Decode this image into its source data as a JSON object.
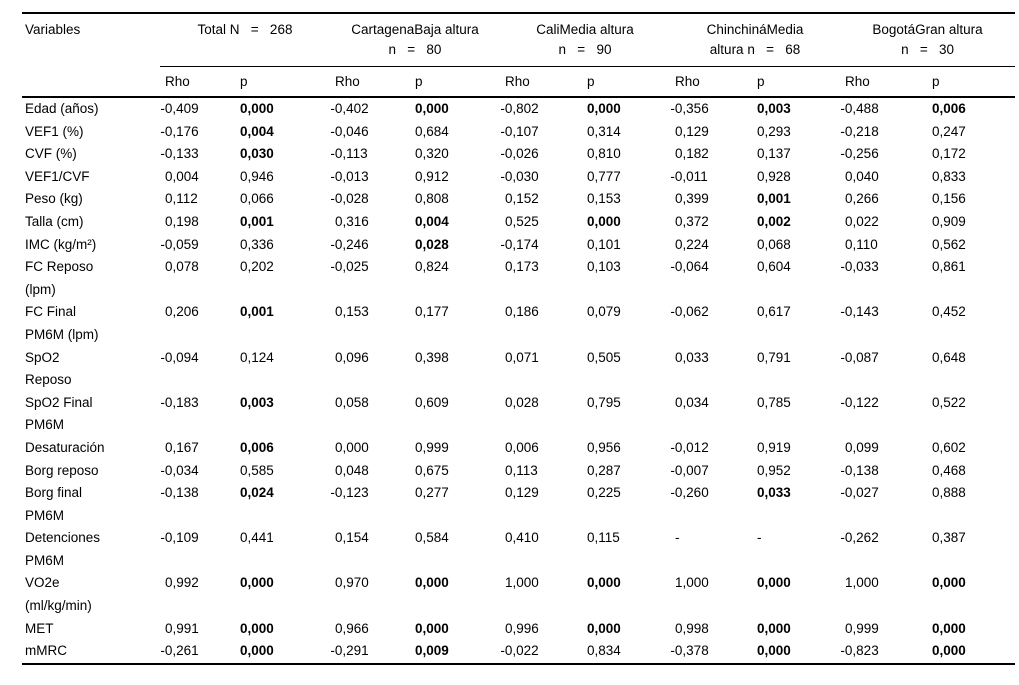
{
  "colors": {
    "text": "#000000",
    "background": "#ffffff",
    "rule": "#000000"
  },
  "table": {
    "header": {
      "variables_label": "Variables",
      "groups": [
        {
          "line1": "Total N   =   268",
          "line2": ""
        },
        {
          "line1": "CartagenaBaja altura",
          "line2": "n   =   80"
        },
        {
          "line1": "CaliMedia altura",
          "line2": "n   =   90"
        },
        {
          "line1": "ChinchináMedia",
          "line2": "altura n   =   68"
        },
        {
          "line1": "BogotáGran altura",
          "line2": "n   =   30"
        }
      ],
      "sub_labels": [
        "Rho",
        "p"
      ]
    },
    "rows": [
      {
        "label": [
          "Edad (años)"
        ],
        "cells": [
          [
            "-0,409",
            0
          ],
          [
            "0,000",
            1
          ],
          [
            "-0,402",
            0
          ],
          [
            "0,000",
            1
          ],
          [
            "-0,802",
            0
          ],
          [
            "0,000",
            1
          ],
          [
            "-0,356",
            0
          ],
          [
            "0,003",
            1
          ],
          [
            "-0,488",
            0
          ],
          [
            "0,006",
            1
          ]
        ]
      },
      {
        "label": [
          "VEF1 (%)"
        ],
        "cells": [
          [
            "-0,176",
            0
          ],
          [
            "0,004",
            1
          ],
          [
            "-0,046",
            0
          ],
          [
            "0,684",
            0
          ],
          [
            "-0,107",
            0
          ],
          [
            "0,314",
            0
          ],
          [
            "0,129",
            0
          ],
          [
            "0,293",
            0
          ],
          [
            "-0,218",
            0
          ],
          [
            "0,247",
            0
          ]
        ]
      },
      {
        "label": [
          "CVF (%)"
        ],
        "cells": [
          [
            "-0,133",
            0
          ],
          [
            "0,030",
            1
          ],
          [
            "-0,113",
            0
          ],
          [
            "0,320",
            0
          ],
          [
            "-0,026",
            0
          ],
          [
            "0,810",
            0
          ],
          [
            "0,182",
            0
          ],
          [
            "0,137",
            0
          ],
          [
            "-0,256",
            0
          ],
          [
            "0,172",
            0
          ]
        ]
      },
      {
        "label": [
          "VEF1/CVF"
        ],
        "cells": [
          [
            "0,004",
            0
          ],
          [
            "0,946",
            0
          ],
          [
            "-0,013",
            0
          ],
          [
            "0,912",
            0
          ],
          [
            "-0,030",
            0
          ],
          [
            "0,777",
            0
          ],
          [
            "-0,011",
            0
          ],
          [
            "0,928",
            0
          ],
          [
            "0,040",
            0
          ],
          [
            "0,833",
            0
          ]
        ]
      },
      {
        "label": [
          "Peso (kg)"
        ],
        "cells": [
          [
            "0,112",
            0
          ],
          [
            "0,066",
            0
          ],
          [
            "-0,028",
            0
          ],
          [
            "0,808",
            0
          ],
          [
            "0,152",
            0
          ],
          [
            "0,153",
            0
          ],
          [
            "0,399",
            0
          ],
          [
            "0,001",
            1
          ],
          [
            "0,266",
            0
          ],
          [
            "0,156",
            0
          ]
        ]
      },
      {
        "label": [
          "Talla (cm)"
        ],
        "cells": [
          [
            "0,198",
            0
          ],
          [
            "0,001",
            1
          ],
          [
            "0,316",
            0
          ],
          [
            "0,004",
            1
          ],
          [
            "0,525",
            0
          ],
          [
            "0,000",
            1
          ],
          [
            "0,372",
            0
          ],
          [
            "0,002",
            1
          ],
          [
            "0,022",
            0
          ],
          [
            "0,909",
            0
          ]
        ]
      },
      {
        "label": [
          "IMC (kg/m²)"
        ],
        "cells": [
          [
            "-0,059",
            0
          ],
          [
            "0,336",
            0
          ],
          [
            "-0,246",
            0
          ],
          [
            "0,028",
            1
          ],
          [
            "-0,174",
            0
          ],
          [
            "0,101",
            0
          ],
          [
            "0,224",
            0
          ],
          [
            "0,068",
            0
          ],
          [
            "0,110",
            0
          ],
          [
            "0,562",
            0
          ]
        ]
      },
      {
        "label": [
          "FC Reposo",
          "(lpm)"
        ],
        "cells": [
          [
            "0,078",
            0
          ],
          [
            "0,202",
            0
          ],
          [
            "-0,025",
            0
          ],
          [
            "0,824",
            0
          ],
          [
            "0,173",
            0
          ],
          [
            "0,103",
            0
          ],
          [
            "-0,064",
            0
          ],
          [
            "0,604",
            0
          ],
          [
            "-0,033",
            0
          ],
          [
            "0,861",
            0
          ]
        ]
      },
      {
        "label": [
          "FC Final",
          "PM6M (lpm)"
        ],
        "cells": [
          [
            "0,206",
            0
          ],
          [
            "0,001",
            1
          ],
          [
            "0,153",
            0
          ],
          [
            "0,177",
            0
          ],
          [
            "0,186",
            0
          ],
          [
            "0,079",
            0
          ],
          [
            "-0,062",
            0
          ],
          [
            "0,617",
            0
          ],
          [
            "-0,143",
            0
          ],
          [
            "0,452",
            0
          ]
        ]
      },
      {
        "label": [
          "SpO2",
          "Reposo"
        ],
        "cells": [
          [
            "-0,094",
            0
          ],
          [
            "0,124",
            0
          ],
          [
            "0,096",
            0
          ],
          [
            "0,398",
            0
          ],
          [
            "0,071",
            0
          ],
          [
            "0,505",
            0
          ],
          [
            "0,033",
            0
          ],
          [
            "0,791",
            0
          ],
          [
            "-0,087",
            0
          ],
          [
            "0,648",
            0
          ]
        ]
      },
      {
        "label": [
          "SpO2 Final",
          "PM6M"
        ],
        "cells": [
          [
            "-0,183",
            0
          ],
          [
            "0,003",
            1
          ],
          [
            "0,058",
            0
          ],
          [
            "0,609",
            0
          ],
          [
            "0,028",
            0
          ],
          [
            "0,795",
            0
          ],
          [
            "0,034",
            0
          ],
          [
            "0,785",
            0
          ],
          [
            "-0,122",
            0
          ],
          [
            "0,522",
            0
          ]
        ]
      },
      {
        "label": [
          "Desaturación"
        ],
        "cells": [
          [
            "0,167",
            0
          ],
          [
            "0,006",
            1
          ],
          [
            "0,000",
            0
          ],
          [
            "0,999",
            0
          ],
          [
            "0,006",
            0
          ],
          [
            "0,956",
            0
          ],
          [
            "-0,012",
            0
          ],
          [
            "0,919",
            0
          ],
          [
            "0,099",
            0
          ],
          [
            "0,602",
            0
          ]
        ]
      },
      {
        "label": [
          "Borg reposo"
        ],
        "cells": [
          [
            "-0,034",
            0
          ],
          [
            "0,585",
            0
          ],
          [
            "0,048",
            0
          ],
          [
            "0,675",
            0
          ],
          [
            "0,113",
            0
          ],
          [
            "0,287",
            0
          ],
          [
            "-0,007",
            0
          ],
          [
            "0,952",
            0
          ],
          [
            "-0,138",
            0
          ],
          [
            "0,468",
            0
          ]
        ]
      },
      {
        "label": [
          "Borg final",
          "PM6M"
        ],
        "cells": [
          [
            "-0,138",
            0
          ],
          [
            "0,024",
            1
          ],
          [
            "-0,123",
            0
          ],
          [
            "0,277",
            0
          ],
          [
            "0,129",
            0
          ],
          [
            "0,225",
            0
          ],
          [
            "-0,260",
            0
          ],
          [
            "0,033",
            1
          ],
          [
            "-0,027",
            0
          ],
          [
            "0,888",
            0
          ]
        ]
      },
      {
        "label": [
          "Detenciones",
          "PM6M"
        ],
        "cells": [
          [
            "-0,109",
            0
          ],
          [
            "0,441",
            0
          ],
          [
            "0,154",
            0
          ],
          [
            "0,584",
            0
          ],
          [
            "0,410",
            0
          ],
          [
            "0,115",
            0
          ],
          [
            "-",
            0
          ],
          [
            "-",
            0
          ],
          [
            "-0,262",
            0
          ],
          [
            "0,387",
            0
          ]
        ]
      },
      {
        "label": [
          "VO2e",
          "(ml/kg/min)"
        ],
        "cells": [
          [
            "0,992",
            0
          ],
          [
            "0,000",
            1
          ],
          [
            "0,970",
            0
          ],
          [
            "0,000",
            1
          ],
          [
            "1,000",
            0
          ],
          [
            "0,000",
            1
          ],
          [
            "1,000",
            0
          ],
          [
            "0,000",
            1
          ],
          [
            "1,000",
            0
          ],
          [
            "0,000",
            1
          ]
        ]
      },
      {
        "label": [
          "MET"
        ],
        "cells": [
          [
            "0,991",
            0
          ],
          [
            "0,000",
            1
          ],
          [
            "0,966",
            0
          ],
          [
            "0,000",
            1
          ],
          [
            "0,996",
            0
          ],
          [
            "0,000",
            1
          ],
          [
            "0,998",
            0
          ],
          [
            "0,000",
            1
          ],
          [
            "0,999",
            0
          ],
          [
            "0,000",
            1
          ]
        ]
      },
      {
        "label": [
          "mMRC"
        ],
        "cells": [
          [
            "-0,261",
            0
          ],
          [
            "0,000",
            1
          ],
          [
            "-0,291",
            0
          ],
          [
            "0,009",
            1
          ],
          [
            "-0,022",
            0
          ],
          [
            "0,834",
            0
          ],
          [
            "-0,378",
            0
          ],
          [
            "0,000",
            1
          ],
          [
            "-0,823",
            0
          ],
          [
            "0,000",
            1
          ]
        ]
      }
    ]
  }
}
